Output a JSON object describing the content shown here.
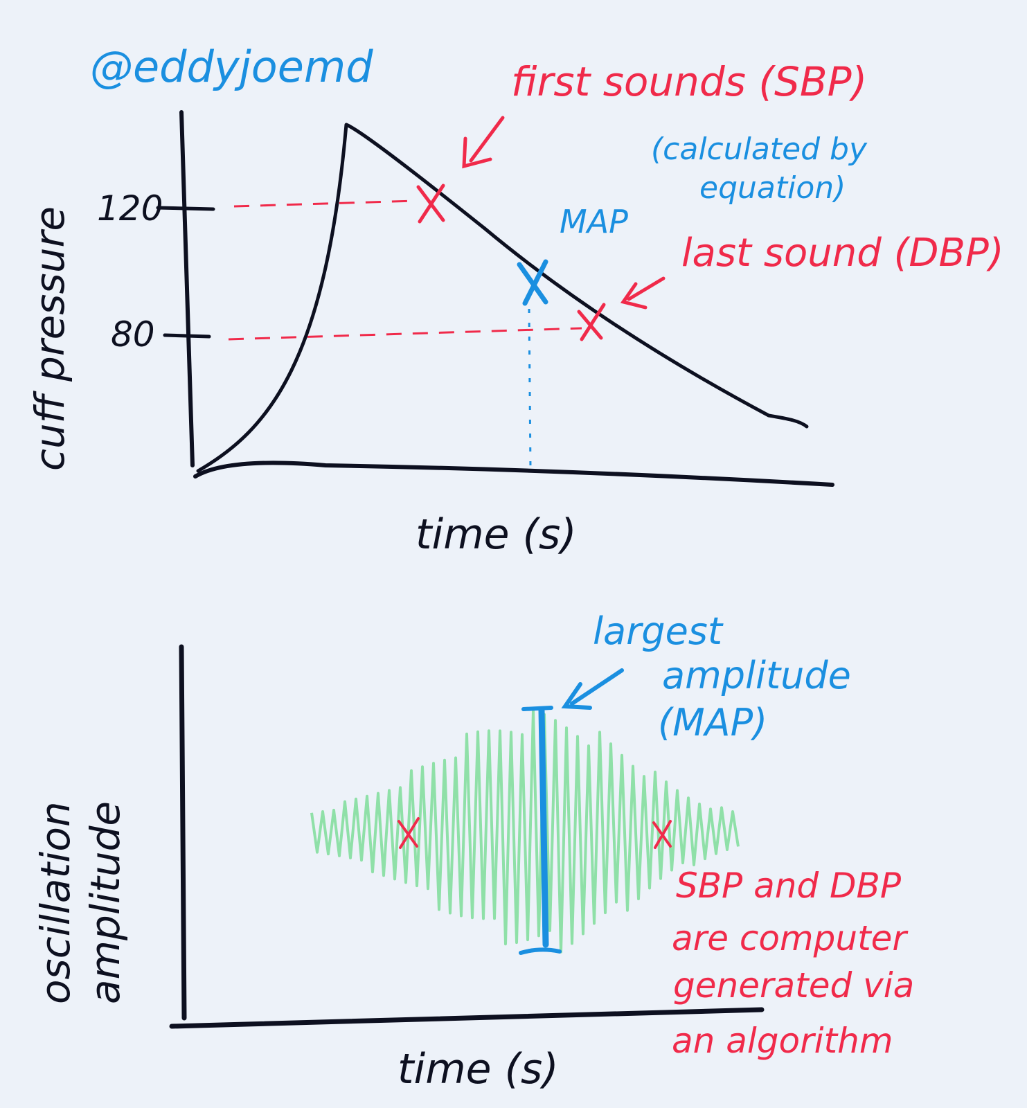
{
  "author_handle": "@eddyjoemd",
  "colors": {
    "ink": "#0d1020",
    "red": "#f02a4a",
    "blue": "#1a8fe0",
    "oscillation": "#8fe0a8",
    "background": "#edf2f9"
  },
  "top_chart": {
    "y_label": "cuff pressure",
    "x_label": "time (s)",
    "y_ticks": [
      "120",
      "80"
    ],
    "annotations": {
      "first_sounds": "first sounds (SBP)",
      "map_label": "MAP",
      "map_note_line1": "(calculated by",
      "map_note_line2": "equation)",
      "last_sound": "last sound (DBP)"
    }
  },
  "bottom_chart": {
    "y_label_line1": "oscillation",
    "y_label_line2": "amplitude",
    "x_label": "time (s)",
    "annotations": {
      "largest_line1": "largest",
      "largest_line2": "amplitude",
      "largest_line3": "(MAP)",
      "note_line1": "SBP and DBP",
      "note_line2": "are computer",
      "note_line3": "generated via",
      "note_line4": "an algorithm"
    }
  }
}
